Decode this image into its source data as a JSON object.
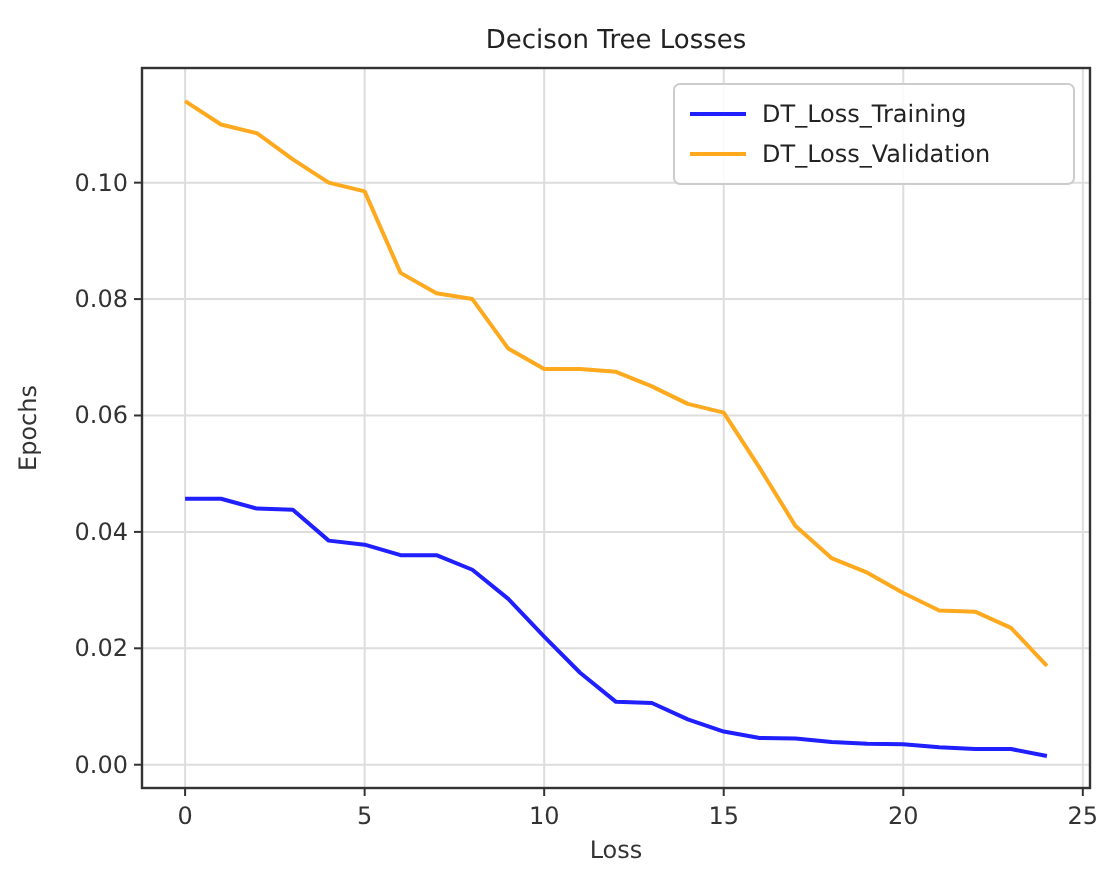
{
  "chart_data": {
    "type": "line",
    "title": "Decison Tree  Losses",
    "xlabel": "Loss",
    "ylabel": "Epochs",
    "x": [
      0,
      1,
      2,
      3,
      4,
      5,
      6,
      7,
      8,
      9,
      10,
      11,
      12,
      13,
      14,
      15,
      16,
      17,
      18,
      19,
      20,
      21,
      22,
      23,
      24
    ],
    "series": [
      {
        "name": "DT_Loss_Training",
        "color": "#1f1fff",
        "values": [
          0.0457,
          0.0457,
          0.044,
          0.0438,
          0.0385,
          0.0378,
          0.036,
          0.036,
          0.0335,
          0.0285,
          0.022,
          0.0158,
          0.0108,
          0.0106,
          0.0078,
          0.0057,
          0.0046,
          0.0045,
          0.0039,
          0.0036,
          0.0035,
          0.003,
          0.0027,
          0.0027,
          0.0015
        ]
      },
      {
        "name": "DT_Loss_Validation",
        "color": "#ffa91f",
        "values": [
          0.114,
          0.11,
          0.1085,
          0.104,
          0.1,
          0.0985,
          0.0845,
          0.081,
          0.08,
          0.0715,
          0.068,
          0.068,
          0.0675,
          0.065,
          0.062,
          0.0605,
          0.051,
          0.041,
          0.0355,
          0.033,
          0.0295,
          0.0265,
          0.0263,
          0.0235,
          0.017
        ]
      }
    ],
    "xlim": [
      -1.2,
      25.2
    ],
    "ylim": [
      -0.004,
      0.1197
    ],
    "xticks": [
      0,
      5,
      10,
      15,
      20,
      25
    ],
    "yticks": [
      {
        "value": 0,
        "label": "0.00"
      },
      {
        "value": 0.02,
        "label": "0.02"
      },
      {
        "value": 0.04,
        "label": "0.04"
      },
      {
        "value": 0.06,
        "label": "0.06"
      },
      {
        "value": 0.08,
        "label": "0.08"
      },
      {
        "value": 0.1,
        "label": "0.10"
      }
    ],
    "grid": true,
    "legend": "top right",
    "marker": "none",
    "line_style": "solid"
  }
}
